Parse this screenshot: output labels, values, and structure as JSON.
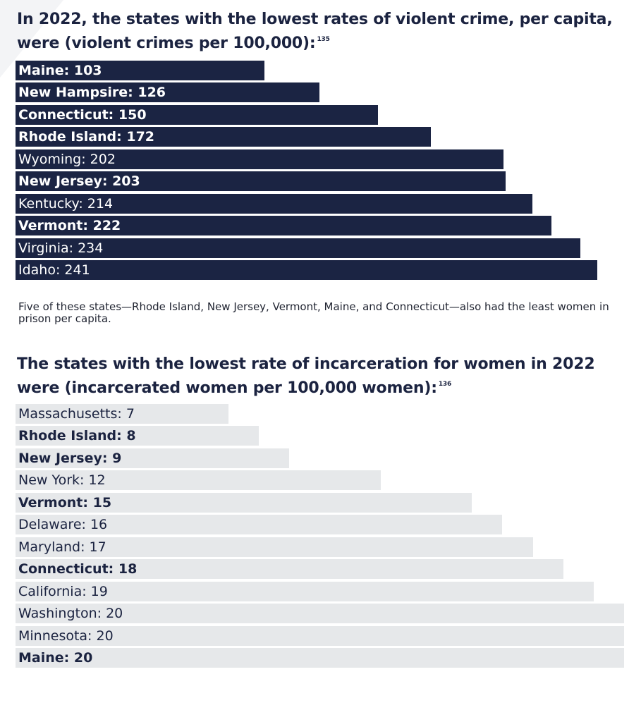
{
  "colors": {
    "dark_bar": "#1b2443",
    "light_bar": "#e6e8ea",
    "text": "#1b2340"
  },
  "section1": {
    "title": "In 2022, the states with the lowest rates of violent crime, per capita, were (violent crimes per 100,000):",
    "footnote": "135"
  },
  "note": "Five of these states—Rhode Island, New Jersey, Vermont, Maine, and Connecticut—also had the least women in prison per capita.",
  "section2": {
    "title": "The states with the lowest rate of incarceration for women in 2022 were (incarcerated women per 100,000 women):",
    "footnote": "136"
  },
  "chart_data": [
    {
      "type": "bar",
      "orientation": "horizontal",
      "title": "In 2022, the states with the lowest rates of violent crime, per capita, were (violent crimes per 100,000):",
      "unit": "violent crimes per 100,000",
      "xlim": [
        0,
        243
      ],
      "categories": [
        "Maine",
        "New Hampsire",
        "Connecticut",
        "Rhode Island",
        "Wyoming",
        "New Jersey",
        "Kentucky",
        "Vermont",
        "Virginia",
        "Idaho"
      ],
      "values": [
        103,
        126,
        150,
        172,
        202,
        203,
        214,
        222,
        234,
        241
      ],
      "labels": [
        "Maine: 103",
        "New Hampsire: 126",
        "Connecticut: 150",
        "Rhode Island: 172",
        "Wyoming: 202",
        "New Jersey: 203",
        "Kentucky: 214",
        "Vermont: 222",
        "Virginia: 234",
        "Idaho: 241"
      ],
      "bold": [
        true,
        true,
        true,
        true,
        false,
        true,
        false,
        true,
        false,
        false
      ]
    },
    {
      "type": "bar",
      "orientation": "horizontal",
      "title": "The states with the lowest rate of incarceration for women in 2022 were (incarcerated women per 100,000 women):",
      "unit": "incarcerated women per 100,000 women",
      "xlim": [
        0,
        20
      ],
      "categories": [
        "Massachusetts",
        "Rhode Island",
        "New Jersey",
        "New York",
        "Vermont",
        "Delaware",
        "Maryland",
        "Connecticut",
        "California",
        "Washington",
        "Minnesota",
        "Maine"
      ],
      "values": [
        7,
        8,
        9,
        12,
        15,
        16,
        17,
        18,
        19,
        20,
        20,
        20
      ],
      "labels": [
        "Massachusetts: 7",
        "Rhode Island: 8",
        "New Jersey: 9",
        "New York: 12",
        "Vermont: 15",
        "Delaware: 16",
        "Maryland: 17",
        "Connecticut: 18",
        "California: 19",
        "Washington: 20",
        "Minnesota: 20",
        "Maine: 20"
      ],
      "bold": [
        false,
        true,
        true,
        false,
        true,
        false,
        false,
        true,
        false,
        false,
        false,
        true
      ]
    }
  ]
}
